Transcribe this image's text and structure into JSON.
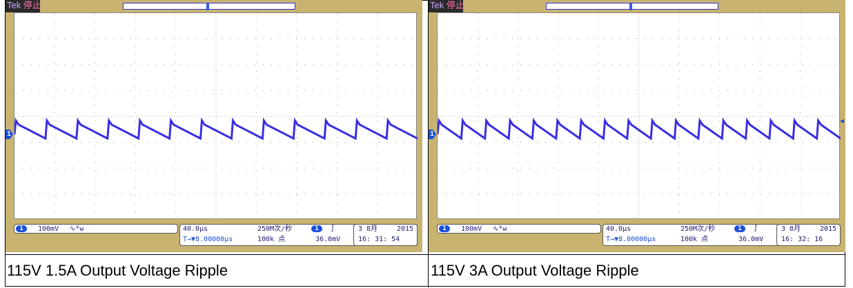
{
  "scope1": {
    "brand": "Tek",
    "status": "停止",
    "trigger_marker": "T",
    "channel_marker": "1",
    "ch_badge": "1",
    "ch_scale": "100mV",
    "bw_icon": "∿ᴮw",
    "time_scale": "40.0µs",
    "delay": "T→▼8.00000µs",
    "sample_rate": "250M次/秒",
    "record_length": "100k 点",
    "trig_badge": "1",
    "trig_slope": "∫",
    "trig_level": "36.0mV",
    "date_day": "3 8月",
    "date_year": "2015",
    "time": "16: 31: 54",
    "caption": "115V 1.5A Output Voltage Ripple"
  },
  "scope2": {
    "brand": "Tek",
    "status": "停止",
    "trigger_marker": "T",
    "channel_marker": "1",
    "ch_badge": "1",
    "ch_scale": "100mV",
    "bw_icon": "∿ᴮw",
    "time_scale": "40.0µs",
    "delay": "T→▼8.00000µs",
    "sample_rate": "250M次/秒",
    "record_length": "100k 点",
    "trig_badge": "1",
    "trig_slope": "∫",
    "trig_level": "36.0mV",
    "date_day": "3 8月",
    "date_year": "2015",
    "time": "16: 32: 16",
    "caption": "115V 3A Output Voltage Ripple"
  },
  "colors": {
    "bezel": "#c8b470",
    "trace": "#3a2ee0",
    "marker": "#1a4fd8"
  }
}
